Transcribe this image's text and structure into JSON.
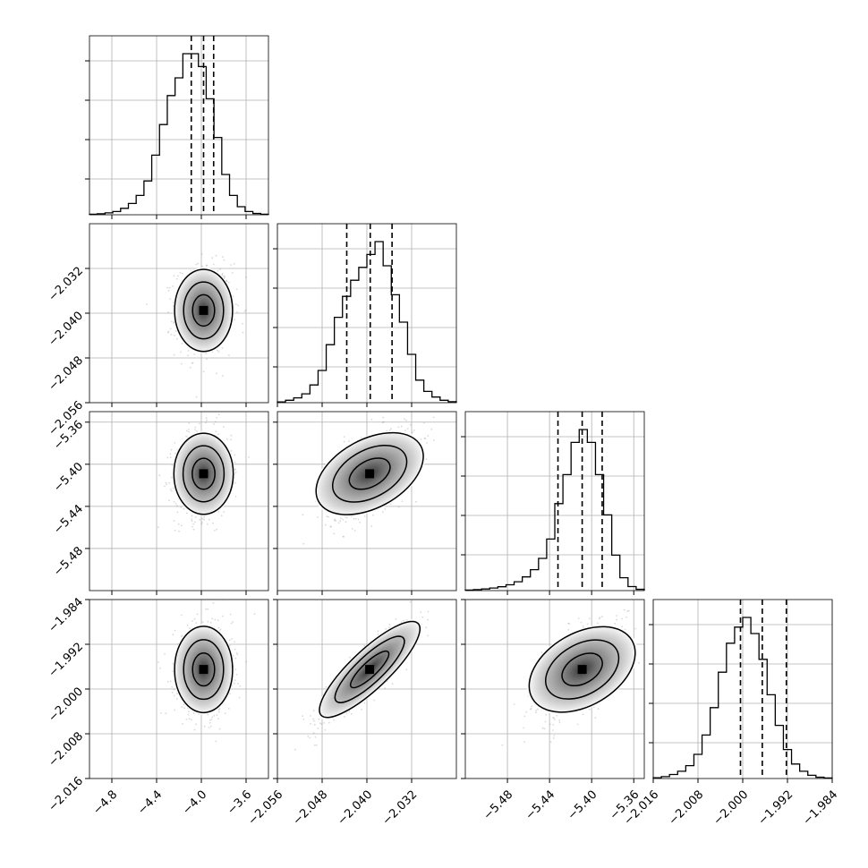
{
  "chart_data": {
    "type": "corner",
    "parameters": 4,
    "grid": true,
    "quantile_lines": "dashed",
    "contour_levels": 3,
    "params": [
      {
        "range": [
          -5.0,
          -3.4
        ],
        "ticks": [
          -4.8,
          -4.4,
          -4.0,
          -3.6
        ],
        "tick_labels": [
          "−4.8",
          "−4.4",
          "−4.0",
          "−3.6"
        ],
        "quantiles": [
          -4.09,
          -3.98,
          -3.89
        ],
        "median": -3.98,
        "sigma": 0.12,
        "hist_counts": [
          0.3,
          0.6,
          1.2,
          2.0,
          4.0,
          7.0,
          12.0,
          21.0,
          37.0,
          56.0,
          74.0,
          85.0,
          100.0,
          100.0,
          92.0,
          72.0,
          48.0,
          25.0,
          12.0,
          5.0,
          2.0,
          0.8,
          0.3
        ]
      },
      {
        "range": [
          -2.056,
          -2.024
        ],
        "ticks": [
          -2.056,
          -2.048,
          -2.04,
          -2.032
        ],
        "tick_labels": [
          "−2.056",
          "−2.048",
          "−2.040",
          "−2.032"
        ],
        "quantiles": [
          -2.0436,
          -2.0394,
          -2.0355
        ],
        "median": -2.0395,
        "sigma": 0.0038,
        "hist_counts": [
          0.5,
          1.5,
          3.0,
          5.5,
          11.0,
          20.0,
          36.0,
          53.0,
          66.0,
          76.0,
          84.0,
          92.0,
          100.0,
          85.0,
          67.0,
          50.0,
          30.0,
          14.0,
          7.0,
          3.5,
          1.5,
          0.6
        ]
      },
      {
        "range": [
          -5.52,
          -5.35
        ],
        "ticks": [
          -5.48,
          -5.44,
          -5.4,
          -5.36
        ],
        "tick_labels": [
          "−5.48",
          "−5.44",
          "−5.40",
          "−5.36"
        ],
        "quantiles": [
          -5.432,
          -5.409,
          -5.39
        ],
        "median": -5.409,
        "sigma": 0.02,
        "hist_counts": [
          0.3,
          0.6,
          1.0,
          1.6,
          2.4,
          3.6,
          5.5,
          8.5,
          13.0,
          20.0,
          32.0,
          54.0,
          72.0,
          92.0,
          100.0,
          92.0,
          72.0,
          47.0,
          22.0,
          8.0,
          2.5,
          0.8
        ]
      },
      {
        "range": [
          -2.016,
          -1.984
        ],
        "ticks": [
          -2.016,
          -2.008,
          -2.0,
          -1.992,
          -1.984
        ],
        "tick_labels": [
          "−2.016",
          "−2.008",
          "−2.000",
          "−1.992",
          "−1.984"
        ],
        "quantiles": [
          -2.0004,
          -1.9965,
          -1.9922
        ],
        "median": -1.9965,
        "sigma": 0.004,
        "hist_counts": [
          0.5,
          1.2,
          2.5,
          4.5,
          8.0,
          15.0,
          27.0,
          44.0,
          66.0,
          84.0,
          94.0,
          100.0,
          90.0,
          74.0,
          52.0,
          33.0,
          18.0,
          9.0,
          4.5,
          2.0,
          0.8,
          0.3
        ]
      }
    ],
    "correlations": [
      [
        1.0,
        0.05,
        0.1,
        0.05
      ],
      [
        0.05,
        1.0,
        0.55,
        0.9
      ],
      [
        0.1,
        0.55,
        1.0,
        0.55
      ],
      [
        0.05,
        0.9,
        0.55,
        1.0
      ]
    ]
  }
}
